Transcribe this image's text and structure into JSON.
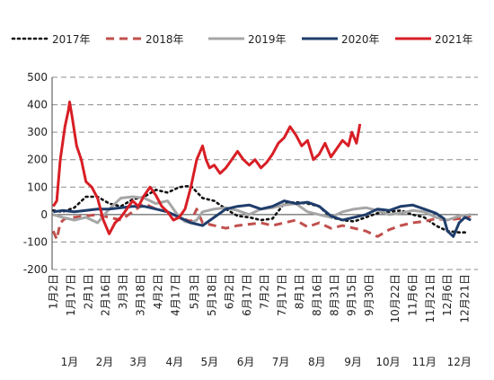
{
  "chart_data": {
    "type": "line",
    "title": "",
    "xlabel": "",
    "ylabel": "",
    "ylim": [
      -200,
      500
    ],
    "yticks": [
      -200,
      -100,
      0,
      100,
      200,
      300,
      400,
      500
    ],
    "grid": "horizontal dashed",
    "legend_position": "top",
    "x_tick_labels": [
      "1月2日",
      "1月17日",
      "2月1日",
      "2月16日",
      "3月3日",
      "3月18日",
      "4月2日",
      "4月17日",
      "5月3日",
      "5月18日",
      "6月2日",
      "6月17日",
      "7月2日",
      "7月17日",
      "8月1日",
      "8月16日",
      "8月31日",
      "9月15日",
      "9月30日",
      "10月22日",
      "11月6日",
      "11月21日",
      "12月6日",
      "12月21日"
    ],
    "x_tick_days": [
      2,
      17,
      32,
      47,
      62,
      77,
      92,
      107,
      123,
      138,
      153,
      168,
      183,
      198,
      213,
      228,
      243,
      258,
      273,
      295,
      310,
      325,
      340,
      355
    ],
    "month_labels": [
      "1月",
      "2月",
      "3月",
      "4月",
      "5月",
      "6月",
      "7月",
      "8月",
      "9月",
      "10月",
      "11月",
      "12月"
    ],
    "month_days": [
      16,
      46,
      75,
      106,
      136,
      167,
      197,
      228,
      259,
      289,
      320,
      350
    ],
    "series": [
      {
        "name": "2017年",
        "color": "#111111",
        "style": "dotted",
        "x": [
          2,
          10,
          20,
          30,
          40,
          50,
          60,
          70,
          80,
          90,
          100,
          110,
          120,
          130,
          140,
          150,
          160,
          170,
          180,
          190,
          200,
          210,
          220,
          230,
          240,
          250,
          260,
          270,
          280,
          290,
          300,
          310,
          320,
          330,
          340,
          350,
          355
        ],
        "y": [
          15,
          10,
          25,
          65,
          65,
          40,
          30,
          55,
          65,
          90,
          80,
          100,
          105,
          60,
          50,
          20,
          -5,
          -10,
          -20,
          -15,
          40,
          45,
          40,
          30,
          -10,
          -20,
          -25,
          -10,
          5,
          10,
          15,
          0,
          -10,
          -40,
          -60,
          -65,
          -65
        ]
      },
      {
        "name": "2018年",
        "color": "#c0504d",
        "style": "dashed",
        "x": [
          2,
          5,
          8,
          12,
          20,
          30,
          40,
          50,
          60,
          70,
          80,
          90,
          100,
          110,
          120,
          125,
          130,
          140,
          150,
          160,
          170,
          180,
          190,
          200,
          210,
          220,
          230,
          240,
          250,
          260,
          270,
          280,
          290,
          300,
          310,
          320,
          330,
          340,
          350,
          360
        ],
        "y": [
          -60,
          -90,
          -30,
          -15,
          -10,
          -5,
          0,
          -10,
          -20,
          10,
          40,
          20,
          10,
          -10,
          -25,
          20,
          -30,
          -40,
          -50,
          -40,
          -35,
          -30,
          -40,
          -30,
          -20,
          -45,
          -30,
          -50,
          -40,
          -50,
          -60,
          -80,
          -55,
          -40,
          -30,
          -25,
          -15,
          -20,
          -15,
          -5
        ]
      },
      {
        "name": "2019年",
        "color": "#a6a6a6",
        "style": "solid",
        "x": [
          2,
          10,
          20,
          30,
          40,
          50,
          60,
          70,
          80,
          90,
          100,
          110,
          115,
          120,
          125,
          130,
          140,
          150,
          160,
          170,
          180,
          190,
          200,
          210,
          220,
          230,
          240,
          250,
          260,
          270,
          280,
          290,
          300,
          310,
          320,
          330,
          340,
          350,
          360
        ],
        "y": [
          0,
          -10,
          -20,
          -10,
          -30,
          20,
          60,
          65,
          60,
          40,
          50,
          -10,
          -25,
          -30,
          -20,
          10,
          20,
          25,
          15,
          0,
          20,
          25,
          35,
          40,
          10,
          0,
          -10,
          10,
          20,
          25,
          15,
          0,
          5,
          15,
          10,
          -10,
          -20,
          -5,
          0
        ]
      },
      {
        "name": "2020年",
        "color": "#1f3d6b",
        "style": "solid",
        "x": [
          2,
          10,
          20,
          30,
          40,
          50,
          60,
          70,
          80,
          90,
          100,
          110,
          120,
          130,
          140,
          150,
          160,
          170,
          180,
          190,
          200,
          210,
          220,
          230,
          240,
          250,
          260,
          270,
          280,
          290,
          300,
          310,
          320,
          330,
          337,
          340,
          345,
          350,
          355,
          360
        ],
        "y": [
          10,
          15,
          10,
          15,
          20,
          20,
          25,
          30,
          30,
          20,
          10,
          -10,
          -30,
          -40,
          -10,
          20,
          30,
          35,
          20,
          30,
          50,
          40,
          45,
          30,
          -5,
          -20,
          -10,
          0,
          20,
          15,
          30,
          35,
          20,
          5,
          -15,
          -60,
          -80,
          -30,
          -10,
          -20
        ]
      },
      {
        "name": "2021年",
        "color": "#d81e25",
        "style": "solid",
        "x": [
          2,
          5,
          8,
          12,
          15,
          16,
          18,
          22,
          26,
          30,
          35,
          40,
          45,
          50,
          55,
          60,
          65,
          70,
          75,
          80,
          85,
          90,
          95,
          100,
          105,
          110,
          115,
          120,
          125,
          130,
          133,
          136,
          140,
          145,
          150,
          155,
          160,
          165,
          170,
          175,
          180,
          185,
          190,
          195,
          200,
          205,
          210,
          215,
          220,
          225,
          230,
          235,
          240,
          245,
          250,
          255,
          258,
          262,
          265
        ],
        "y": [
          30,
          50,
          200,
          320,
          380,
          410,
          360,
          250,
          200,
          120,
          100,
          60,
          -20,
          -70,
          -30,
          -10,
          20,
          50,
          30,
          70,
          100,
          70,
          30,
          10,
          -20,
          -10,
          20,
          100,
          200,
          250,
          200,
          170,
          180,
          150,
          170,
          200,
          230,
          200,
          180,
          200,
          170,
          190,
          220,
          260,
          280,
          320,
          290,
          250,
          270,
          200,
          220,
          260,
          210,
          240,
          270,
          250,
          300,
          260,
          330
        ]
      }
    ]
  }
}
